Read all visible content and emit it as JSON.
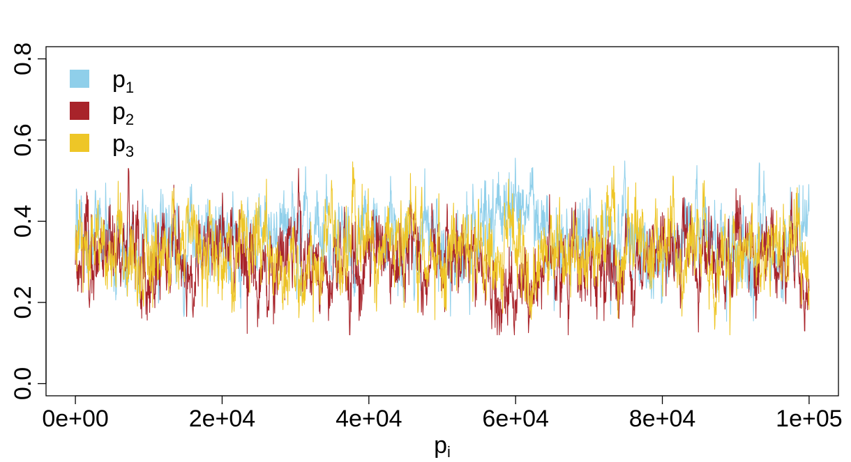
{
  "chart_data": {
    "type": "line",
    "title": "",
    "xlabel": "p",
    "xlabel_subscript": "i",
    "ylabel": "",
    "xlim": [
      -4000,
      104000
    ],
    "ylim": [
      -0.03,
      0.83
    ],
    "x_ticks": [
      0,
      20000,
      40000,
      60000,
      80000,
      100000
    ],
    "x_tick_labels": [
      "0e+00",
      "2e+04",
      "4e+04",
      "6e+04",
      "8e+04",
      "1e+05"
    ],
    "y_ticks": [
      0.0,
      0.2,
      0.4,
      0.6,
      0.8
    ],
    "y_tick_labels": [
      "0.0",
      "0.2",
      "0.4",
      "0.6",
      "0.8"
    ],
    "grid": false,
    "legend_position": "top-left",
    "n_points": 100000,
    "series": [
      {
        "name": "p",
        "subscript": "1",
        "color": "#8fcfea",
        "mean": 0.35,
        "range": [
          0.14,
          0.56
        ],
        "x": [
          0,
          5000,
          10000,
          15000,
          20000,
          25000,
          30000,
          35000,
          40000,
          45000,
          50000,
          55000,
          58000,
          60000,
          62000,
          65000,
          70000,
          75000,
          80000,
          85000,
          90000,
          95000,
          100000
        ],
        "y": [
          0.36,
          0.33,
          0.37,
          0.34,
          0.35,
          0.33,
          0.38,
          0.34,
          0.36,
          0.33,
          0.35,
          0.37,
          0.44,
          0.42,
          0.45,
          0.34,
          0.35,
          0.37,
          0.33,
          0.36,
          0.34,
          0.35,
          0.4
        ]
      },
      {
        "name": "p",
        "subscript": "2",
        "color": "#a8232a",
        "mean": 0.32,
        "range": [
          0.12,
          0.53
        ],
        "x": [
          0,
          5000,
          10000,
          15000,
          20000,
          25000,
          30000,
          35000,
          40000,
          45000,
          50000,
          55000,
          58000,
          60000,
          62000,
          65000,
          70000,
          75000,
          80000,
          85000,
          90000,
          95000,
          100000
        ],
        "y": [
          0.3,
          0.34,
          0.31,
          0.3,
          0.35,
          0.28,
          0.33,
          0.3,
          0.32,
          0.29,
          0.33,
          0.3,
          0.24,
          0.22,
          0.25,
          0.32,
          0.34,
          0.3,
          0.33,
          0.31,
          0.34,
          0.32,
          0.24
        ]
      },
      {
        "name": "p",
        "subscript": "3",
        "color": "#eec627",
        "mean": 0.33,
        "range": [
          0.12,
          0.59
        ],
        "x": [
          0,
          5000,
          10000,
          15000,
          20000,
          25000,
          30000,
          35000,
          40000,
          45000,
          50000,
          55000,
          58000,
          60000,
          62000,
          65000,
          70000,
          75000,
          80000,
          85000,
          90000,
          95000,
          100000
        ],
        "y": [
          0.34,
          0.33,
          0.32,
          0.36,
          0.3,
          0.39,
          0.29,
          0.36,
          0.32,
          0.38,
          0.32,
          0.33,
          0.32,
          0.36,
          0.3,
          0.34,
          0.31,
          0.33,
          0.34,
          0.33,
          0.32,
          0.33,
          0.36
        ]
      }
    ]
  }
}
